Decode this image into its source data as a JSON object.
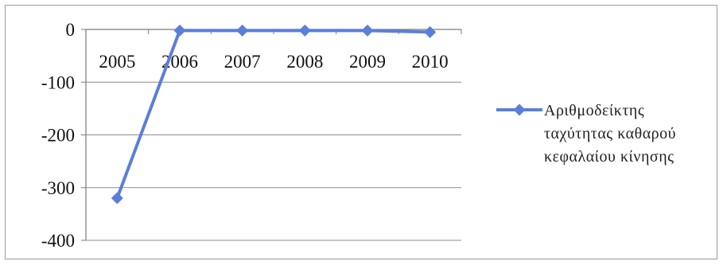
{
  "chart_data": {
    "type": "line",
    "categories": [
      "2005",
      "2006",
      "2007",
      "2008",
      "2009",
      "2010"
    ],
    "series": [
      {
        "name": "Αριθμοδείκτης ταχύτητας καθαρού κεφαλαίου κίνησης",
        "values": [
          -320,
          -2,
          -2,
          -2,
          -2,
          -5
        ],
        "color": "#5b7fd8"
      }
    ],
    "ylim": [
      -400,
      0
    ],
    "yticks": [
      "0",
      "-100",
      "-200",
      "-300",
      "-400"
    ],
    "ytick_values": [
      0,
      -100,
      -200,
      -300,
      -400
    ],
    "xaxis_position": "at y=0 (top)",
    "grid": true,
    "legend": {
      "position": "right",
      "lines": [
        "Αριθμοδείκτης",
        "ταχύτητας καθαρού",
        "κεφαλαίου κίνησης"
      ]
    },
    "title": "",
    "xlabel": "",
    "ylabel": "",
    "marker": "diamond"
  }
}
